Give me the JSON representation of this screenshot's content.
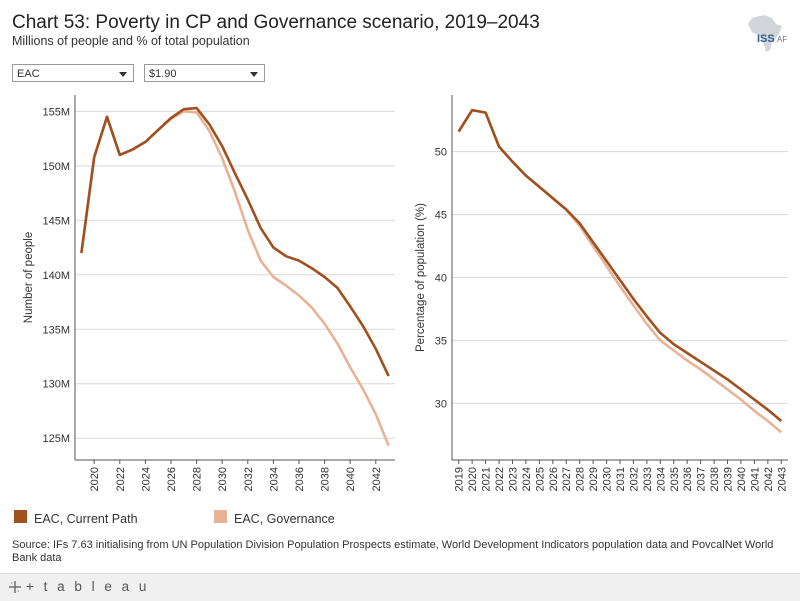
{
  "header": {
    "title": "Chart 53: Poverty in CP and Governance scenario, 2019–2043",
    "subtitle": "Millions of people and % of total population",
    "logo_text_iss": "ISS",
    "logo_text_af": "AF"
  },
  "filters": {
    "region": "EAC",
    "poverty_line": "$1.90"
  },
  "colors": {
    "current_path": "#a0501e",
    "governance": "#e8b394",
    "grid": "#d9d9d9",
    "axis": "#555555"
  },
  "legend": [
    {
      "label": "EAC, Current Path",
      "color": "#a0501e"
    },
    {
      "label": "EAC, Governance",
      "color": "#e8b394"
    }
  ],
  "chart_data": [
    {
      "type": "line",
      "ylabel": "Number of people",
      "ylim": [
        123,
        156.5
      ],
      "yticks": [
        125,
        130,
        135,
        140,
        145,
        150,
        155
      ],
      "ytick_labels": [
        "125M",
        "130M",
        "135M",
        "140M",
        "145M",
        "150M",
        "155M"
      ],
      "xlim": [
        2018.5,
        2043.5
      ],
      "xticks": [
        2020,
        2022,
        2024,
        2026,
        2028,
        2030,
        2032,
        2034,
        2036,
        2038,
        2040,
        2042
      ],
      "xtick_labels": [
        "2020",
        "2022",
        "2024",
        "2026",
        "2028",
        "2030",
        "2032",
        "2034",
        "2036",
        "2038",
        "2040",
        "2042"
      ],
      "x": [
        2019,
        2020,
        2021,
        2022,
        2023,
        2024,
        2025,
        2026,
        2027,
        2028,
        2029,
        2030,
        2031,
        2032,
        2033,
        2034,
        2035,
        2036,
        2037,
        2038,
        2039,
        2040,
        2041,
        2042,
        2043
      ],
      "series": [
        {
          "name": "EAC, Current Path",
          "values": [
            142.0,
            150.8,
            154.5,
            151.0,
            151.5,
            152.2,
            153.3,
            154.4,
            155.2,
            155.3,
            153.8,
            151.8,
            149.3,
            146.9,
            144.3,
            142.5,
            141.7,
            141.3,
            140.6,
            139.8,
            138.8,
            137.1,
            135.3,
            133.2,
            130.7
          ]
        },
        {
          "name": "EAC, Governance",
          "values": [
            142.0,
            150.8,
            154.5,
            151.0,
            151.5,
            152.2,
            153.3,
            154.3,
            155.0,
            154.9,
            153.2,
            150.7,
            147.6,
            144.1,
            141.3,
            139.8,
            139.0,
            138.1,
            137.0,
            135.5,
            133.7,
            131.5,
            129.5,
            127.2,
            124.3
          ]
        }
      ],
      "grid": true
    },
    {
      "type": "line",
      "ylabel": "Percentage of population (%)",
      "ylim": [
        25.5,
        54.5
      ],
      "yticks": [
        30,
        35,
        40,
        45,
        50
      ],
      "ytick_labels": [
        "30",
        "35",
        "40",
        "45",
        "50"
      ],
      "xlim": [
        2018.5,
        2043.5
      ],
      "xticks": [
        2019,
        2020,
        2021,
        2022,
        2023,
        2024,
        2025,
        2026,
        2027,
        2028,
        2029,
        2030,
        2031,
        2032,
        2033,
        2034,
        2035,
        2036,
        2037,
        2038,
        2039,
        2040,
        2041,
        2042,
        2043
      ],
      "xtick_labels": [
        "2019",
        "2020",
        "2021",
        "2022",
        "2023",
        "2024",
        "2025",
        "2026",
        "2027",
        "2028",
        "2029",
        "2030",
        "2031",
        "2032",
        "2033",
        "2034",
        "2035",
        "2036",
        "2037",
        "2038",
        "2039",
        "2040",
        "2041",
        "2042",
        "2043"
      ],
      "x": [
        2019,
        2020,
        2021,
        2022,
        2023,
        2024,
        2025,
        2026,
        2027,
        2028,
        2029,
        2030,
        2031,
        2032,
        2033,
        2034,
        2035,
        2036,
        2037,
        2038,
        2039,
        2040,
        2041,
        2042,
        2043
      ],
      "series": [
        {
          "name": "EAC, Current Path",
          "values": [
            51.6,
            53.3,
            53.1,
            50.4,
            49.2,
            48.1,
            47.2,
            46.3,
            45.4,
            44.3,
            42.8,
            41.3,
            39.8,
            38.3,
            36.9,
            35.6,
            34.7,
            34.0,
            33.3,
            32.6,
            31.9,
            31.1,
            30.3,
            29.5,
            28.6
          ]
        },
        {
          "name": "EAC, Governance",
          "values": [
            51.6,
            53.3,
            53.1,
            50.4,
            49.2,
            48.1,
            47.2,
            46.3,
            45.4,
            44.1,
            42.5,
            40.9,
            39.3,
            37.8,
            36.3,
            35.0,
            34.2,
            33.4,
            32.7,
            31.9,
            31.1,
            30.3,
            29.4,
            28.6,
            27.7
          ]
        }
      ],
      "grid": true
    }
  ],
  "source": "Source: IFs 7.63 initialising from UN Population Division Population Prospects estimate, World Development Indicators population data and PovcalNet World Bank data",
  "footer": {
    "brand": "+ t a b l e a u"
  }
}
